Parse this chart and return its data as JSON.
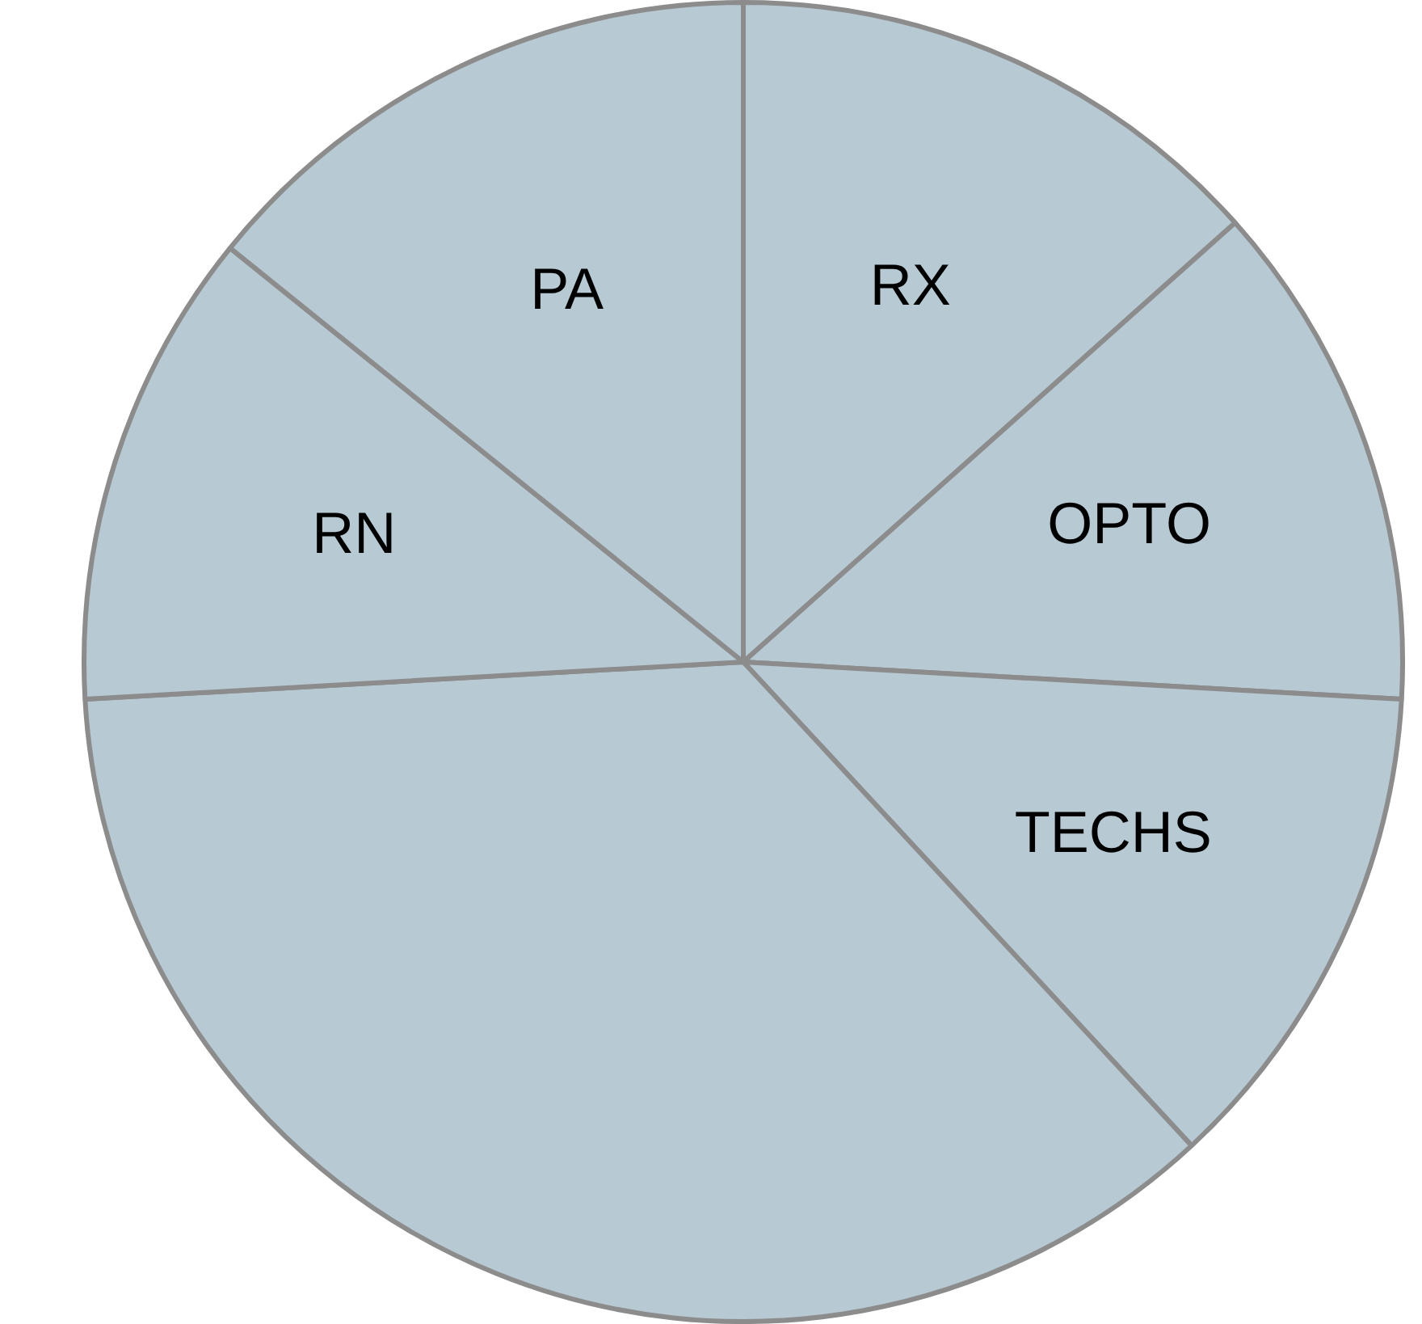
{
  "chart_data": {
    "type": "pie",
    "categories": [
      "RX",
      "OPTO",
      "TECHS",
      null,
      "RN",
      "PA"
    ],
    "values": [
      13.4,
      12.5,
      12.2,
      36,
      11.7,
      14.2
    ],
    "colors": [
      "#b7c9d3",
      "#b7c9d3",
      "#b7c9d3",
      "#b7c9d3",
      "#b7c9d3",
      "#b7c9d3"
    ],
    "legend": false
  }
}
